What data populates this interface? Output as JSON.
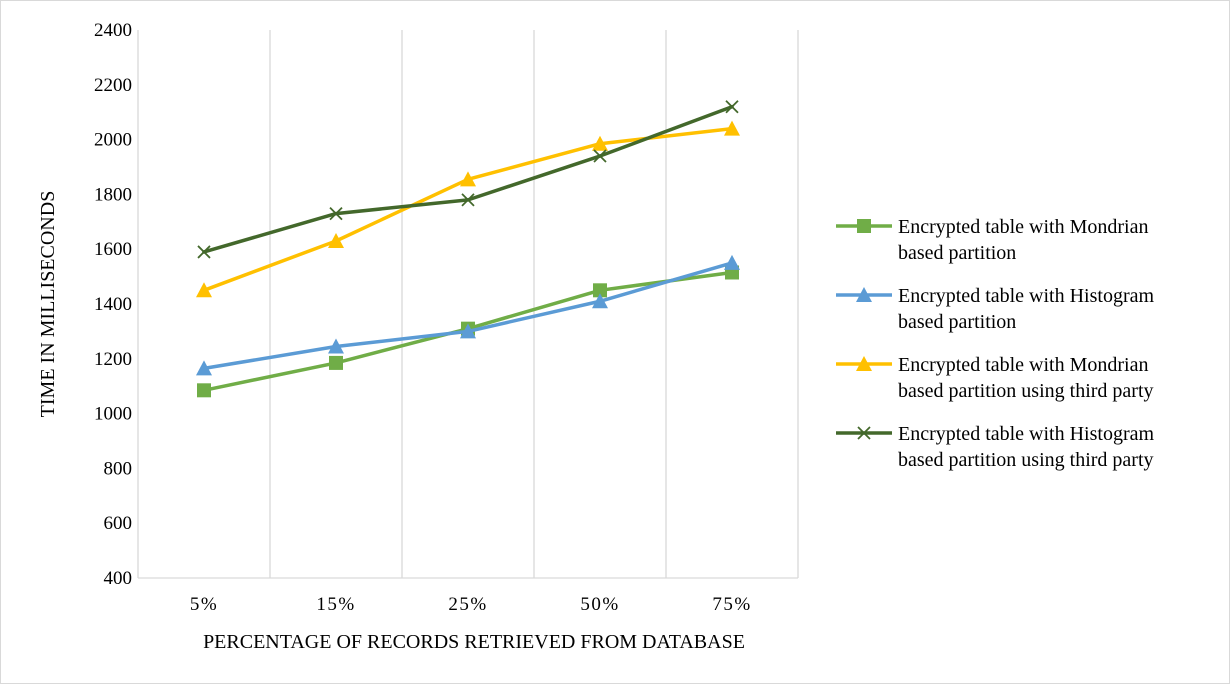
{
  "chart_data": {
    "type": "line",
    "title": "",
    "xlabel": "PERCENTAGE OF RECORDS RETRIEVED FROM DATABASE",
    "ylabel": "TIME IN MILLISECONDS",
    "categories": [
      "5%",
      "15%",
      "25%",
      "50%",
      "75%"
    ],
    "ylim": [
      400,
      2400
    ],
    "yticks": [
      400,
      600,
      800,
      1000,
      1200,
      1400,
      1600,
      1800,
      2000,
      2200,
      2400
    ],
    "grid": "vertical",
    "legend_position": "right",
    "series": [
      {
        "name": "Encrypted table with Mondrian based partition",
        "legend_lines": [
          "Encrypted table with Mondrian",
          "based partition"
        ],
        "values": [
          1085,
          1185,
          1310,
          1450,
          1515
        ],
        "color": "#70ad47",
        "marker": "square"
      },
      {
        "name": "Encrypted table with Histogram based partition",
        "legend_lines": [
          "Encrypted table with Histogram",
          "based partition"
        ],
        "values": [
          1165,
          1245,
          1300,
          1410,
          1550
        ],
        "color": "#5b9bd5",
        "marker": "triangle"
      },
      {
        "name": "Encrypted table with Mondrian based partition using third party",
        "legend_lines": [
          "Encrypted table with Mondrian",
          "based partition using third party"
        ],
        "values": [
          1450,
          1630,
          1855,
          1985,
          2040
        ],
        "color": "#ffc000",
        "marker": "triangle"
      },
      {
        "name": "Encrypted table with Histogram based partition using third party",
        "legend_lines": [
          "Encrypted table with Histogram",
          "based partition using third party"
        ],
        "values": [
          1590,
          1730,
          1780,
          1940,
          2120
        ],
        "color": "#43682b",
        "marker": "x"
      }
    ]
  }
}
